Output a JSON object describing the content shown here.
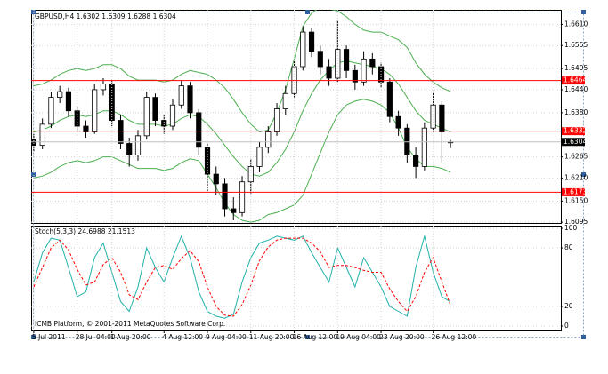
{
  "chart_data": [
    {
      "type": "candlestick",
      "title": "GBPUSD,H4  1.6302 1.6309 1.6288 1.6304",
      "xlim": [
        -0.3,
        60.7
      ],
      "ylim": [
        1.6093,
        1.6648
      ],
      "yticks": [
        {
          "value": 1.661,
          "label": "1.6610"
        },
        1.6555,
        1.6495,
        {
          "value": 1.644,
          "label": "1.6440"
        },
        {
          "value": 1.638,
          "label": "1.6380"
        },
        1.6265,
        {
          "value": 1.621,
          "label": "1.6210"
        },
        {
          "value": 1.615,
          "label": "1.6150"
        },
        1.6095
      ],
      "grid": true,
      "color": "#000000",
      "open": [
        1.631,
        1.6295,
        1.635,
        1.642,
        1.6435,
        1.6385,
        1.6345,
        1.633,
        1.644,
        1.6455,
        1.636,
        1.63,
        1.627,
        1.632,
        1.642,
        1.636,
        1.6345,
        1.64,
        1.645,
        1.638,
        1.629,
        1.622,
        1.6195,
        1.613,
        1.612,
        1.62,
        1.624,
        1.629,
        1.633,
        1.639,
        1.643,
        1.65,
        1.659,
        1.654,
        1.65,
        1.647,
        1.6545,
        1.649,
        1.646,
        1.652,
        1.65,
        1.646,
        1.637,
        1.634,
        1.627,
        1.624,
        1.634,
        1.64,
        1.6302
      ],
      "high": [
        1.6325,
        1.6365,
        1.6435,
        1.645,
        1.6445,
        1.6395,
        1.636,
        1.6455,
        1.647,
        1.6465,
        1.6375,
        1.6315,
        1.6335,
        1.6435,
        1.643,
        1.6375,
        1.6415,
        1.6465,
        1.646,
        1.639,
        1.63,
        1.624,
        1.621,
        1.616,
        1.6215,
        1.626,
        1.6305,
        1.6345,
        1.6405,
        1.645,
        1.6515,
        1.6605,
        1.66,
        1.6555,
        1.652,
        1.662,
        1.6555,
        1.6505,
        1.654,
        1.6535,
        1.651,
        1.647,
        1.6385,
        1.635,
        1.629,
        1.6355,
        1.6435,
        1.641,
        1.6309
      ],
      "low": [
        1.628,
        1.6285,
        1.634,
        1.6405,
        1.637,
        1.633,
        1.6315,
        1.6325,
        1.6425,
        1.6345,
        1.6285,
        1.624,
        1.6255,
        1.631,
        1.6345,
        1.6325,
        1.6335,
        1.639,
        1.6365,
        1.627,
        1.6175,
        1.6165,
        1.611,
        1.61,
        1.611,
        1.617,
        1.6225,
        1.6275,
        1.632,
        1.6375,
        1.642,
        1.649,
        1.6525,
        1.648,
        1.645,
        1.646,
        1.647,
        1.644,
        1.645,
        1.648,
        1.6445,
        1.6355,
        1.632,
        1.625,
        1.621,
        1.623,
        1.633,
        1.625,
        1.6288
      ],
      "close": [
        1.6295,
        1.635,
        1.642,
        1.6435,
        1.6385,
        1.6345,
        1.633,
        1.644,
        1.6455,
        1.636,
        1.63,
        1.627,
        1.632,
        1.642,
        1.636,
        1.6345,
        1.64,
        1.645,
        1.638,
        1.629,
        1.622,
        1.6195,
        1.613,
        1.612,
        1.62,
        1.624,
        1.629,
        1.633,
        1.639,
        1.643,
        1.65,
        1.659,
        1.654,
        1.65,
        1.647,
        1.6545,
        1.649,
        1.646,
        1.652,
        1.65,
        1.646,
        1.637,
        1.634,
        1.627,
        1.624,
        1.634,
        1.64,
        1.633,
        1.6304
      ],
      "bands": {
        "color": "#4caf50",
        "upper": [
          1.645,
          1.6455,
          1.6465,
          1.648,
          1.649,
          1.6495,
          1.649,
          1.6495,
          1.6505,
          1.6505,
          1.6495,
          1.6475,
          1.6465,
          1.6465,
          1.6465,
          1.646,
          1.6465,
          1.648,
          1.649,
          1.6485,
          1.648,
          1.6465,
          1.6445,
          1.6415,
          1.638,
          1.635,
          1.633,
          1.6335,
          1.638,
          1.644,
          1.652,
          1.6605,
          1.664,
          1.6655,
          1.665,
          1.6645,
          1.663,
          1.661,
          1.6595,
          1.659,
          1.659,
          1.658,
          1.657,
          1.655,
          1.651,
          1.648,
          1.646,
          1.6445,
          1.6435
        ],
        "middle": [
          1.633,
          1.6335,
          1.6345,
          1.636,
          1.637,
          1.6375,
          1.637,
          1.6375,
          1.6385,
          1.6385,
          1.6375,
          1.636,
          1.635,
          1.635,
          1.635,
          1.6345,
          1.635,
          1.6365,
          1.6375,
          1.637,
          1.635,
          1.6325,
          1.6295,
          1.6265,
          1.624,
          1.622,
          1.6215,
          1.6225,
          1.625,
          1.6285,
          1.633,
          1.6385,
          1.643,
          1.6465,
          1.649,
          1.651,
          1.6515,
          1.651,
          1.6505,
          1.65,
          1.6495,
          1.648,
          1.6455,
          1.642,
          1.6385,
          1.636,
          1.635,
          1.634,
          1.633
        ],
        "lower": [
          1.621,
          1.6215,
          1.6225,
          1.624,
          1.625,
          1.6255,
          1.625,
          1.6255,
          1.6265,
          1.6265,
          1.6255,
          1.6245,
          1.6235,
          1.6235,
          1.6235,
          1.623,
          1.6235,
          1.625,
          1.626,
          1.6255,
          1.622,
          1.6185,
          1.6145,
          1.6115,
          1.61,
          1.6095,
          1.61,
          1.6115,
          1.612,
          1.613,
          1.614,
          1.6165,
          1.622,
          1.6275,
          1.633,
          1.6375,
          1.64,
          1.641,
          1.6415,
          1.641,
          1.64,
          1.638,
          1.634,
          1.629,
          1.626,
          1.624,
          1.624,
          1.6235,
          1.6225
        ]
      },
      "hlines": [
        {
          "value": 1.6464,
          "color": "#ff0000"
        },
        {
          "value": 1.6332,
          "color": "#ff0000"
        },
        {
          "value": 1.6173,
          "color": "#ff0000"
        }
      ]
    },
    {
      "type": "line",
      "title": "Stoch(5,3,3) 24.6988 21.1513",
      "annotation": "ICMB Platform, © 2001-2011 MetaQuotes Software Corp.",
      "xlim": [
        -0.3,
        60.7
      ],
      "xticks": [
        {
          "value": 0,
          "label": "5 Jul 2011"
        },
        {
          "value": 5,
          "label": "28 Jul 04:00"
        },
        {
          "value": 9,
          "label": "1 Aug 20:00"
        },
        {
          "value": 15,
          "label": "4 Aug 12:00"
        },
        {
          "value": 20,
          "label": "9 Aug 04:00"
        },
        {
          "value": 25,
          "label": "11 Aug 20:00"
        },
        {
          "value": 30,
          "label": "16 Aug 12:00"
        },
        {
          "value": 35,
          "label": "19 Aug 04:00"
        },
        {
          "value": 40,
          "label": "23 Aug 20:00"
        },
        {
          "value": 46,
          "label": "26 Aug 12:00"
        }
      ],
      "ylim": [
        -4.6,
        102.8
      ],
      "yticks": [
        0,
        20,
        80,
        100
      ],
      "grid": true,
      "series": [
        {
          "color": "#20b2aa",
          "dash": false,
          "values": [
            45,
            75,
            90,
            88,
            60,
            30,
            35,
            70,
            85,
            55,
            25,
            15,
            40,
            80,
            60,
            45,
            70,
            92,
            70,
            35,
            15,
            10,
            8,
            12,
            45,
            70,
            85,
            88,
            92,
            90,
            88,
            92,
            75,
            60,
            45,
            80,
            60,
            40,
            70,
            55,
            40,
            20,
            15,
            10,
            60,
            92,
            55,
            30,
            24.6988
          ]
        },
        {
          "color": "#ff0000",
          "dash": true,
          "values": [
            40,
            60,
            80,
            88,
            78,
            58,
            42,
            45,
            63,
            70,
            55,
            32,
            27,
            45,
            60,
            62,
            58,
            69,
            77,
            66,
            40,
            20,
            11,
            10,
            22,
            42,
            67,
            81,
            88,
            90,
            90,
            90,
            85,
            76,
            60,
            62,
            62,
            60,
            57,
            55,
            55,
            38,
            25,
            15,
            30,
            55,
            70,
            45,
            21.1513
          ]
        }
      ]
    }
  ]
}
